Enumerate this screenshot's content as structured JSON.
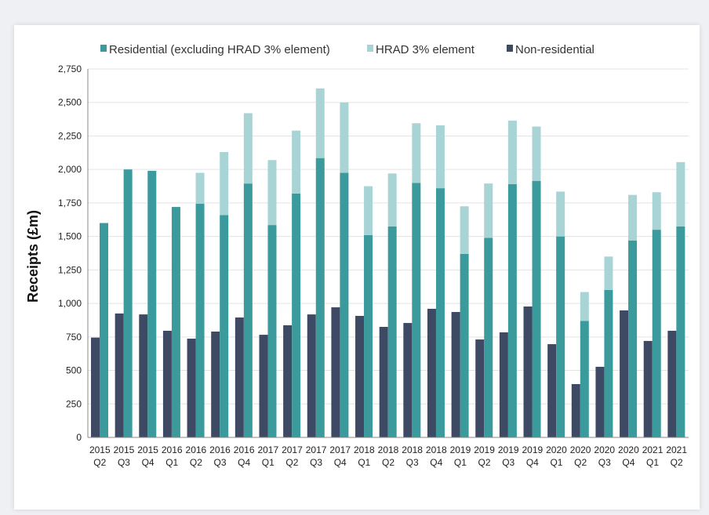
{
  "chart_data": {
    "type": "bar",
    "title": "",
    "xlabel": "",
    "ylabel": "Receipts (£m)",
    "ylim": [
      0,
      2750
    ],
    "yticks": [
      "0",
      "250",
      "500",
      "750",
      "1,000",
      "1,250",
      "1,500",
      "1,750",
      "2,000",
      "2,250",
      "2,500",
      "2,750"
    ],
    "grid": true,
    "legend_position": "top",
    "categories": [
      [
        "2015",
        "Q2"
      ],
      [
        "2015",
        "Q3"
      ],
      [
        "2015",
        "Q4"
      ],
      [
        "2016",
        "Q1"
      ],
      [
        "2016",
        "Q2"
      ],
      [
        "2016",
        "Q3"
      ],
      [
        "2016",
        "Q4"
      ],
      [
        "2017",
        "Q1"
      ],
      [
        "2017",
        "Q2"
      ],
      [
        "2017",
        "Q3"
      ],
      [
        "2017",
        "Q4"
      ],
      [
        "2018",
        "Q1"
      ],
      [
        "2018",
        "Q2"
      ],
      [
        "2018",
        "Q3"
      ],
      [
        "2018",
        "Q4"
      ],
      [
        "2019",
        "Q1"
      ],
      [
        "2019",
        "Q2"
      ],
      [
        "2019",
        "Q3"
      ],
      [
        "2019",
        "Q4"
      ],
      [
        "2020",
        "Q1"
      ],
      [
        "2020",
        "Q2"
      ],
      [
        "2020",
        "Q3"
      ],
      [
        "2020",
        "Q4"
      ],
      [
        "2021",
        "Q1"
      ],
      [
        "2021",
        "Q2"
      ]
    ],
    "series": [
      {
        "name": "Residential (excluding HRAD 3% element)",
        "color": "#3a9a9c",
        "stack": "res",
        "values": [
          1600,
          2000,
          1990,
          1720,
          1745,
          1660,
          1895,
          1585,
          1820,
          2085,
          1975,
          1510,
          1575,
          1900,
          1860,
          1370,
          1490,
          1890,
          1915,
          1500,
          870,
          1100,
          1470,
          1550,
          1575
        ]
      },
      {
        "name": "HRAD 3% element",
        "color": "#a8d4d6",
        "stack": "res",
        "values": [
          0,
          0,
          0,
          0,
          230,
          470,
          525,
          485,
          470,
          520,
          525,
          365,
          395,
          445,
          470,
          355,
          405,
          475,
          405,
          335,
          215,
          250,
          340,
          280,
          480
        ]
      },
      {
        "name": "Non-residential",
        "color": "#3e4a64",
        "stack": "nonres",
        "values": [
          745,
          925,
          918,
          796,
          737,
          790,
          895,
          766,
          837,
          918,
          971,
          907,
          825,
          854,
          960,
          936,
          731,
          784,
          977,
          696,
          398,
          527,
          948,
          720,
          796
        ]
      }
    ]
  }
}
